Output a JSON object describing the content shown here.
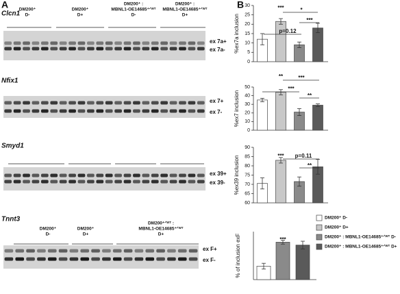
{
  "panel_labels": [
    "A",
    "B"
  ],
  "gels": [
    {
      "gene": "Clcn1",
      "groups": [
        [
          "DM200⁺",
          "D-"
        ],
        [
          "DM200⁺",
          "D+"
        ],
        [
          "DM200⁺ :",
          "MBNL1-OE14685⁺ᐟᵂᵀ",
          "D-"
        ],
        [
          "DM200⁺ :",
          "MBNL1-OE14685⁺ᐟᵂᵀ",
          "D+"
        ]
      ],
      "bands": [
        "ex 7a+",
        "ex 7a-"
      ]
    },
    {
      "gene": "Nfix1",
      "groups": [],
      "bands": [
        "ex 7+",
        "ex 7-"
      ]
    },
    {
      "gene": "Smyd1",
      "groups": [],
      "bands": [
        "ex 39+",
        "ex 39-"
      ]
    },
    {
      "gene": "Tnnt3",
      "groups": [
        [
          "DM200⁺",
          "D-"
        ],
        [
          "DM200⁺",
          "D+"
        ],
        [
          "DM200⁺ᐟᵂᵀ :",
          "MBNL1-OE14685⁺ᐟᵂᵀ",
          "D+"
        ]
      ],
      "bands": [
        "ex F+",
        "ex F-"
      ]
    }
  ],
  "legend": [
    {
      "label": "DM200⁺ D-",
      "color": "#ffffff"
    },
    {
      "label": "DM200⁺ D+",
      "color": "#c8c8c8"
    },
    {
      "label": "DM200⁺ : MBNL1-OE14685⁺ᐟᵂᵀ D-",
      "color": "#8a8a8a"
    },
    {
      "label": "DM200⁺ : MBNL1-OE14685⁺ᐟᵂᵀ D+",
      "color": "#5a5a5a"
    }
  ],
  "chart_data": [
    {
      "type": "bar",
      "y_label": "%ex7a inclusion",
      "values": [
        12,
        21.5,
        9,
        18
      ],
      "errors": [
        3,
        1.5,
        1.5,
        2.5
      ],
      "colors": [
        "#ffffff",
        "#c8c8c8",
        "#8a8a8a",
        "#5a5a5a"
      ],
      "ylim": [
        0,
        30
      ],
      "yticks": [
        0,
        5,
        10,
        15,
        20,
        25,
        30
      ],
      "annotations": [
        "***",
        "p=0.12",
        "*",
        "***"
      ]
    },
    {
      "type": "bar",
      "y_label": "%ex7 inclusion",
      "values": [
        35,
        44,
        21,
        29
      ],
      "errors": [
        2,
        3,
        4,
        1.5
      ],
      "colors": [
        "#ffffff",
        "#c8c8c8",
        "#8a8a8a",
        "#5a5a5a"
      ],
      "ylim": [
        0,
        50
      ],
      "yticks": [
        0,
        10,
        20,
        30,
        40,
        50
      ],
      "annotations": [
        "**",
        "***",
        "***",
        "**"
      ]
    },
    {
      "type": "bar",
      "y_label": "%ex39 inclusion",
      "values": [
        70.5,
        83,
        71.5,
        79.5
      ],
      "errors": [
        3,
        1.5,
        2.5,
        4
      ],
      "colors": [
        "#ffffff",
        "#c8c8c8",
        "#8a8a8a",
        "#5a5a5a"
      ],
      "ylim": [
        60,
        90
      ],
      "yticks": [
        60,
        65,
        70,
        75,
        80,
        85,
        90
      ],
      "annotations": [
        "***",
        "p=0.11",
        "**"
      ]
    },
    {
      "type": "bar",
      "y_label": "% of inclusion exF",
      "values": [
        14,
        39,
        36
      ],
      "errors": [
        3,
        2,
        4
      ],
      "colors": [
        "#ffffff",
        "#8a8a8a",
        "#5a5a5a"
      ],
      "ylim": [
        0,
        50
      ],
      "annotations": [
        "***"
      ]
    }
  ]
}
